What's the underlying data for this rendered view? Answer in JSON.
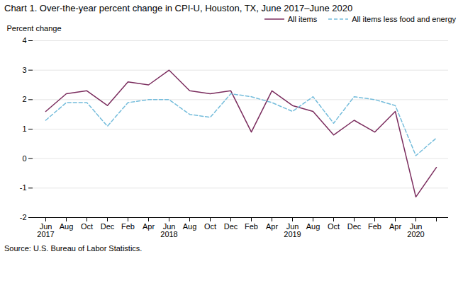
{
  "chart_data": {
    "type": "line",
    "title": "Chart 1. Over-the-year percent change in CPI-U, Houston,  TX, June 2017–June  2020",
    "ylabel": "Percent change",
    "source": "Source: U.S. Bureau of Labor Statistics.",
    "categories": [
      "Jun\n2017",
      "Aug",
      "Oct",
      "Dec",
      "Feb",
      "Apr",
      "Jun\n2018",
      "Aug",
      "Oct",
      "Dec",
      "Feb",
      "Apr",
      "Jun\n2019",
      "Aug",
      "Oct",
      "Dec",
      "Feb",
      "Apr",
      "Jun\n2020",
      null
    ],
    "series": [
      {
        "name": "All items",
        "color": "#7B2D5E",
        "line_style": "solid",
        "values": [
          1.6,
          2.2,
          2.3,
          1.8,
          2.6,
          2.5,
          3.0,
          2.3,
          2.2,
          2.3,
          0.9,
          2.3,
          1.8,
          1.6,
          0.8,
          1.3,
          0.9,
          1.6,
          -1.3,
          -0.3
        ]
      },
      {
        "name": "All items less food and energy",
        "color": "#74BCDB",
        "line_style": "dashed",
        "values": [
          1.3,
          1.9,
          1.9,
          1.1,
          1.9,
          2.0,
          2.0,
          1.5,
          1.4,
          2.2,
          2.1,
          1.9,
          1.6,
          2.1,
          1.2,
          2.1,
          2.0,
          1.8,
          0.1,
          0.7
        ]
      }
    ],
    "ylim": [
      -2.0,
      4.0
    ],
    "yticks": [
      -2.0,
      -1.0,
      0.0,
      1.0,
      2.0,
      3.0,
      4.0
    ],
    "grid": true,
    "legend": "upper right"
  }
}
